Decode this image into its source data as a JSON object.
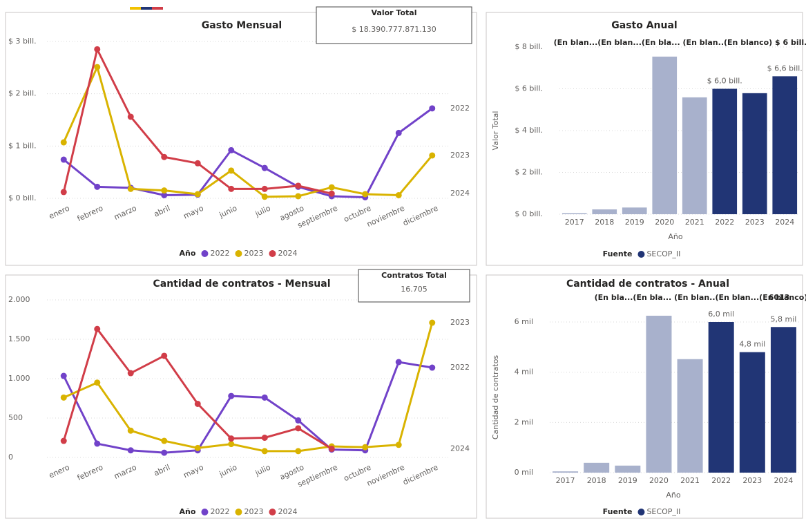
{
  "chart_data": [
    {
      "type": "line",
      "title": "Gasto Mensual",
      "card": {
        "title": "Valor Total",
        "value": "$ 18.390.777.871.130"
      },
      "categories": [
        "enero",
        "febrero",
        "marzo",
        "abril",
        "mayo",
        "junio",
        "julio",
        "agosto",
        "septiembre",
        "octubre",
        "noviembre",
        "diciembre"
      ],
      "series": [
        {
          "name": "2022",
          "color": "#7142c9",
          "values": [
            0.74,
            0.22,
            0.2,
            0.06,
            0.07,
            0.92,
            0.58,
            0.22,
            0.04,
            0.02,
            1.25,
            1.72
          ]
        },
        {
          "name": "2023",
          "color": "#d9b300",
          "values": [
            1.07,
            2.51,
            0.18,
            0.15,
            0.08,
            0.53,
            0.03,
            0.04,
            0.21,
            0.08,
            0.06,
            0.82
          ]
        },
        {
          "name": "2024",
          "color": "#d13d48",
          "values": [
            0.12,
            2.85,
            1.56,
            0.79,
            0.67,
            0.18,
            0.18,
            0.24,
            0.09,
            null,
            null,
            null
          ]
        }
      ],
      "ylim": [
        0,
        3
      ],
      "yticks": [
        {
          "value": 0,
          "label": "$ 0 bill."
        },
        {
          "value": 1,
          "label": "$ 1 bill."
        },
        {
          "value": 2,
          "label": "$ 2 bill."
        },
        {
          "value": 3,
          "label": "$ 3 bill."
        }
      ],
      "grid": true,
      "legend_title": "Año"
    },
    {
      "type": "bar",
      "title": "Gasto Anual",
      "annotations": [
        "(En blan...(En blan...(En bla... (En blan..(En blanco) $ 6 bill."
      ],
      "categories": [
        "2017",
        "2018",
        "2019",
        "2020",
        "2021",
        "2022",
        "2023",
        "2024"
      ],
      "values": [
        0.05,
        0.23,
        0.32,
        7.54,
        5.59,
        6.0,
        5.79,
        6.6
      ],
      "value_labels": [
        null,
        null,
        null,
        null,
        null,
        "$ 6,0 bill.",
        null,
        "$ 6,6 bill."
      ],
      "colors": [
        "#a8b1cc",
        "#a8b1cc",
        "#a8b1cc",
        "#a8b1cc",
        "#a8b1cc",
        "#213575",
        "#213575",
        "#213575"
      ],
      "x_label": "Año",
      "y_label": "Valor Total",
      "ylim": [
        0,
        8
      ],
      "yticks": [
        {
          "value": 0,
          "label": "$ 0 bill."
        },
        {
          "value": 2,
          "label": "$ 2 bill."
        },
        {
          "value": 4,
          "label": "$ 4 bill."
        },
        {
          "value": 6,
          "label": "$ 6 bill."
        },
        {
          "value": 8,
          "label": "$ 8 bill."
        }
      ],
      "grid": true,
      "legend_title": "Fuente",
      "legend": [
        {
          "name": "SECOP_II",
          "color": "#213575"
        }
      ]
    },
    {
      "type": "line",
      "title": "Cantidad de contratos - Mensual",
      "card": {
        "title": "Contratos Total",
        "value": "16.705"
      },
      "categories": [
        "enero",
        "febrero",
        "marzo",
        "abril",
        "mayo",
        "junio",
        "julio",
        "agosto",
        "septiembre",
        "octubre",
        "noviembre",
        "diciembre"
      ],
      "series": [
        {
          "name": "2022",
          "color": "#7142c9",
          "values": [
            1035,
            175,
            90,
            60,
            90,
            780,
            760,
            470,
            100,
            90,
            1210,
            1140
          ]
        },
        {
          "name": "2023",
          "color": "#d9b300",
          "values": [
            760,
            950,
            340,
            210,
            120,
            170,
            80,
            80,
            140,
            130,
            160,
            1710
          ]
        },
        {
          "name": "2024",
          "color": "#d13d48",
          "values": [
            210,
            1630,
            1070,
            1290,
            680,
            240,
            250,
            370,
            110,
            null,
            null,
            null
          ]
        }
      ],
      "ylim": [
        0,
        2000
      ],
      "yticks": [
        0,
        500,
        {
          "value": 1000,
          "label": "1.000"
        },
        {
          "value": 1500,
          "label": "1.500"
        },
        {
          "value": 2000,
          "label": "2.000"
        }
      ],
      "grid": true,
      "legend_title": "Año"
    },
    {
      "type": "bar",
      "title": "Cantidad de contratos - Anual",
      "annotations": [
        "(En bla...(En bla... (En blan..(En blan...(En blanco)",
        "6013"
      ],
      "categories": [
        "2017",
        "2018",
        "2019",
        "2020",
        "2021",
        "2022",
        "2023",
        "2024"
      ],
      "values": [
        0.05,
        0.39,
        0.28,
        6.25,
        4.52,
        6.0,
        4.8,
        5.8
      ],
      "value_labels": [
        null,
        null,
        null,
        null,
        null,
        "6,0 mil",
        "4,8 mil",
        "5,8 mil"
      ],
      "colors": [
        "#a8b1cc",
        "#a8b1cc",
        "#a8b1cc",
        "#a8b1cc",
        "#a8b1cc",
        "#213575",
        "#213575",
        "#213575"
      ],
      "x_label": "Año",
      "y_label": "Cantidad de contratos",
      "ylim": [
        0,
        6
      ],
      "yticks": [
        {
          "value": 0,
          "label": "0 mil"
        },
        {
          "value": 2,
          "label": "2 mil"
        },
        {
          "value": 4,
          "label": "4 mil"
        },
        {
          "value": 6,
          "label": "6 mil"
        }
      ],
      "grid": true,
      "legend_title": "Fuente",
      "legend": [
        {
          "name": "SECOP_II",
          "color": "#213575"
        }
      ]
    }
  ]
}
